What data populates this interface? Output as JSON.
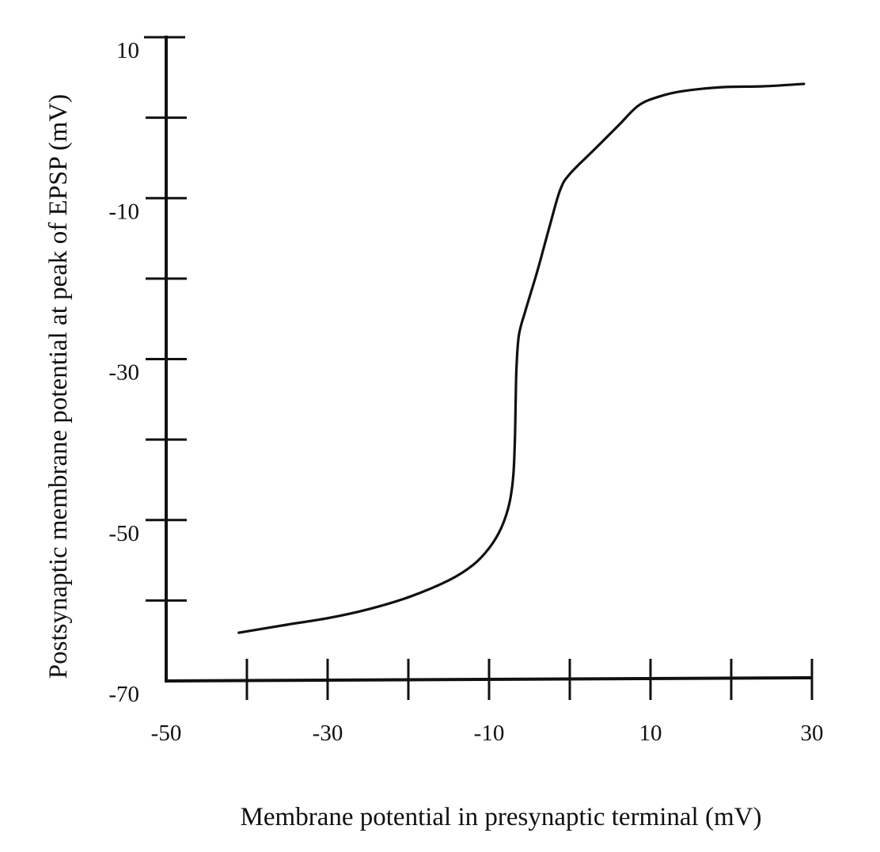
{
  "chart_data": {
    "type": "line",
    "title": "",
    "xlabel": "Membrane potential in presynaptic terminal (mV)",
    "ylabel": "Postsynaptic membrane potential at peak of EPSP (mV)",
    "xlim": [
      -50,
      30
    ],
    "ylim": [
      -70,
      10
    ],
    "x_ticks": [
      -50,
      -40,
      -30,
      -20,
      -10,
      0,
      10,
      20,
      30
    ],
    "x_tick_labels": [
      "-50",
      "-30",
      "-10",
      "10",
      "30"
    ],
    "y_ticks": [
      -70,
      -60,
      -50,
      -40,
      -30,
      -20,
      -10,
      0,
      10
    ],
    "y_tick_labels": [
      "10",
      "-10",
      "-30",
      "-50",
      "-70"
    ],
    "grid": false,
    "series": [
      {
        "points": [
          {
            "x": -41.0,
            "y": -64.0
          },
          {
            "x": -35.0,
            "y": -63.0
          },
          {
            "x": -30.0,
            "y": -62.2
          },
          {
            "x": -25.0,
            "y": -61.1
          },
          {
            "x": -20.0,
            "y": -59.6
          },
          {
            "x": -15.0,
            "y": -57.5
          },
          {
            "x": -12.0,
            "y": -55.6
          },
          {
            "x": -10.0,
            "y": -53.5
          },
          {
            "x": -8.5,
            "y": -51.0
          },
          {
            "x": -7.5,
            "y": -48.0
          },
          {
            "x": -7.0,
            "y": -44.5
          },
          {
            "x": -6.8,
            "y": -40.0
          },
          {
            "x": -6.7,
            "y": -35.0
          },
          {
            "x": -6.6,
            "y": -31.0
          },
          {
            "x": -6.3,
            "y": -27.0
          },
          {
            "x": -5.5,
            "y": -24.0
          },
          {
            "x": -4.0,
            "y": -19.0
          },
          {
            "x": -2.5,
            "y": -13.5
          },
          {
            "x": -1.2,
            "y": -9.0
          },
          {
            "x": 0.0,
            "y": -7.0
          },
          {
            "x": 3.0,
            "y": -4.0
          },
          {
            "x": 6.0,
            "y": -1.0
          },
          {
            "x": 8.5,
            "y": 1.5
          },
          {
            "x": 11.0,
            "y": 2.6
          },
          {
            "x": 14.0,
            "y": 3.3
          },
          {
            "x": 19.0,
            "y": 3.8
          },
          {
            "x": 24.0,
            "y": 3.9
          },
          {
            "x": 29.0,
            "y": 4.2
          }
        ]
      }
    ]
  }
}
